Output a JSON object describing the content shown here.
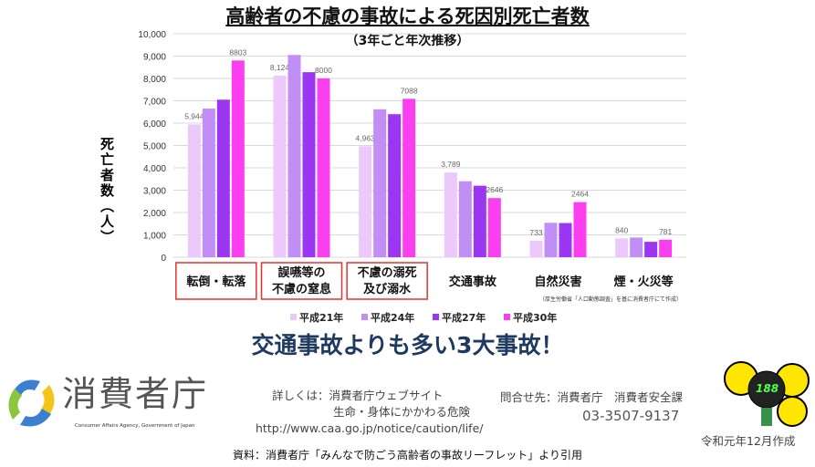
{
  "chart_data": {
    "type": "bar",
    "title": "高齢者の不慮の事故による死因別死亡者数",
    "subtitle": "（3年ごと年次推移）",
    "ylabel": "死亡者数（人）",
    "xlabel": "",
    "ylim": [
      0,
      10000
    ],
    "yticks": [
      "0",
      "1,000",
      "2,000",
      "3,000",
      "4,000",
      "5,000",
      "6,000",
      "7,000",
      "8,000",
      "9,000",
      "10,000"
    ],
    "grid": true,
    "legend_position": "bottom",
    "categories": [
      "転倒・転落",
      "誤嚥等の\n不慮の窒息",
      "不慮の溺死\n及び溺水",
      "交通事故",
      "自然災害",
      "煙・火災等"
    ],
    "highlighted": [
      true,
      true,
      true,
      false,
      false,
      false
    ],
    "series": [
      {
        "name": "平成21年",
        "color": "#ecc8fb",
        "values": [
          5944,
          8124,
          4963,
          3789,
          733,
          840
        ],
        "labels": [
          "5,944",
          "8,124",
          "4,963",
          "3,789",
          "733",
          "840"
        ]
      },
      {
        "name": "平成24年",
        "color": "#c18ef5",
        "values": [
          6650,
          9050,
          6620,
          3400,
          1540,
          880
        ],
        "labels": [
          "",
          "",
          "",
          "",
          "",
          ""
        ]
      },
      {
        "name": "平成27年",
        "color": "#9b36f2",
        "values": [
          7050,
          8280,
          6400,
          3200,
          1530,
          690
        ],
        "labels": [
          "",
          "",
          "",
          "",
          "",
          ""
        ]
      },
      {
        "name": "平成30年",
        "color": "#fb3ff0",
        "values": [
          8803,
          8000,
          7088,
          2646,
          2464,
          781
        ],
        "labels": [
          "8803",
          "8000",
          "7088",
          "2646",
          "2464",
          "781"
        ]
      }
    ],
    "source_note": "（厚生労働省「人口動態調査」を基に消費者庁にて作成）"
  },
  "headline": "交通事故よりも多い3大事故！",
  "footer": {
    "logo_text": "消費者庁",
    "logo_en": "Consumer Affairs Agency, Government of Japan",
    "details_line1": "詳しくは：消費者庁ウェブサイト",
    "details_line2": "生命・身体にかかわる危険",
    "url": "http://www.caa.go.jp/notice/caution/life/",
    "contact_line1": "問合せ先：消費者庁　消費者安全課",
    "contact_phone": "03-3507-9137",
    "mascot_number": "188",
    "created": "令和元年12月作成",
    "citation": "資料：消費者庁「みんなで防ごう高齢者の事故リーフレット」より引用"
  }
}
